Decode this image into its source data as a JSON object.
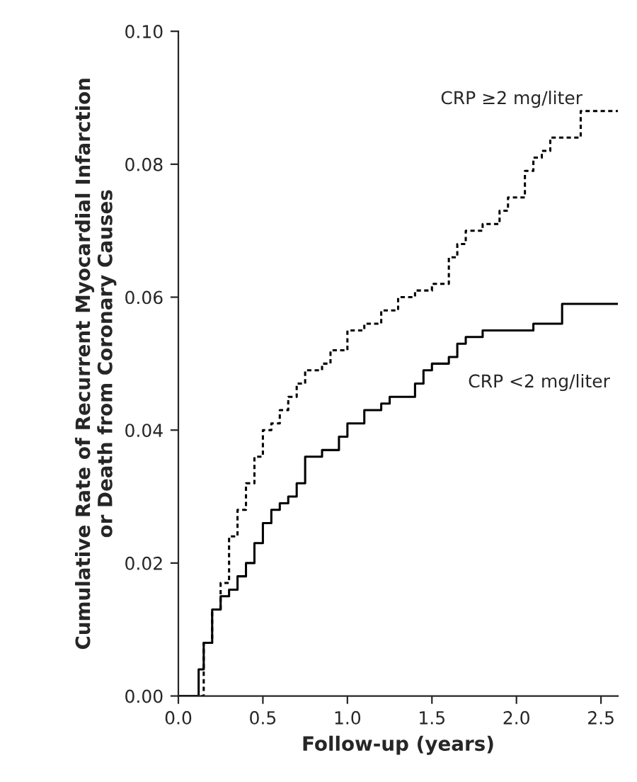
{
  "chart_data": {
    "type": "step",
    "xlabel": "Follow-up (years)",
    "ylabel": "Cumulative Rate of Recurrent Myocardial Infarction\nor Death from Coronary Causes",
    "xlim": [
      0,
      2.6
    ],
    "xticks": [
      {
        "value": 0,
        "label": "0.0"
      },
      0.5,
      {
        "value": 1,
        "label": "1.0"
      },
      1.5,
      {
        "value": 2,
        "label": "2.0"
      },
      2.5
    ],
    "ylim": [
      0,
      0.1
    ],
    "yticks": [
      {
        "value": 0,
        "label": "0.00"
      },
      {
        "value": 0.02,
        "label": "0.02"
      },
      {
        "value": 0.04,
        "label": "0.04"
      },
      {
        "value": 0.06,
        "label": "0.06"
      },
      {
        "value": 0.08,
        "label": "0.08"
      },
      {
        "value": 0.1,
        "label": "0.10"
      }
    ],
    "grid": false,
    "legend": false,
    "marker": "none",
    "series": [
      {
        "name": "CRP ≥2 mg/liter",
        "color": "#000000",
        "line_style": "dotted",
        "x": [
          0,
          0.1,
          0.15,
          0.2,
          0.25,
          0.3,
          0.35,
          0.4,
          0.45,
          0.5,
          0.55,
          0.6,
          0.65,
          0.7,
          0.75,
          0.85,
          0.9,
          1.0,
          1.1,
          1.2,
          1.3,
          1.4,
          1.5,
          1.6,
          1.65,
          1.7,
          1.8,
          1.9,
          1.95,
          2.05,
          2.1,
          2.15,
          2.2,
          2.35,
          2.38,
          2.6
        ],
        "values": [
          0,
          0,
          0.008,
          0.013,
          0.017,
          0.024,
          0.028,
          0.032,
          0.036,
          0.04,
          0.041,
          0.043,
          0.045,
          0.047,
          0.049,
          0.05,
          0.052,
          0.055,
          0.056,
          0.058,
          0.06,
          0.061,
          0.062,
          0.066,
          0.068,
          0.07,
          0.071,
          0.073,
          0.075,
          0.079,
          0.081,
          0.082,
          0.084,
          0.084,
          0.088,
          0.088
        ]
      },
      {
        "name": "CRP <2 mg/liter",
        "color": "#000000",
        "line_style": "solid",
        "x": [
          0,
          0.1,
          0.12,
          0.15,
          0.2,
          0.25,
          0.3,
          0.35,
          0.4,
          0.45,
          0.5,
          0.55,
          0.6,
          0.65,
          0.7,
          0.75,
          0.8,
          0.85,
          0.9,
          0.95,
          1.0,
          1.05,
          1.1,
          1.2,
          1.25,
          1.37,
          1.4,
          1.45,
          1.5,
          1.6,
          1.65,
          1.7,
          1.8,
          2.0,
          2.1,
          2.25,
          2.27,
          2.6
        ],
        "values": [
          0,
          0,
          0.004,
          0.008,
          0.013,
          0.015,
          0.016,
          0.018,
          0.02,
          0.023,
          0.026,
          0.028,
          0.029,
          0.03,
          0.032,
          0.036,
          0.036,
          0.037,
          0.037,
          0.039,
          0.041,
          0.041,
          0.043,
          0.044,
          0.045,
          0.045,
          0.047,
          0.049,
          0.05,
          0.051,
          0.053,
          0.054,
          0.055,
          0.055,
          0.056,
          0.056,
          0.059,
          0.059
        ]
      }
    ]
  }
}
